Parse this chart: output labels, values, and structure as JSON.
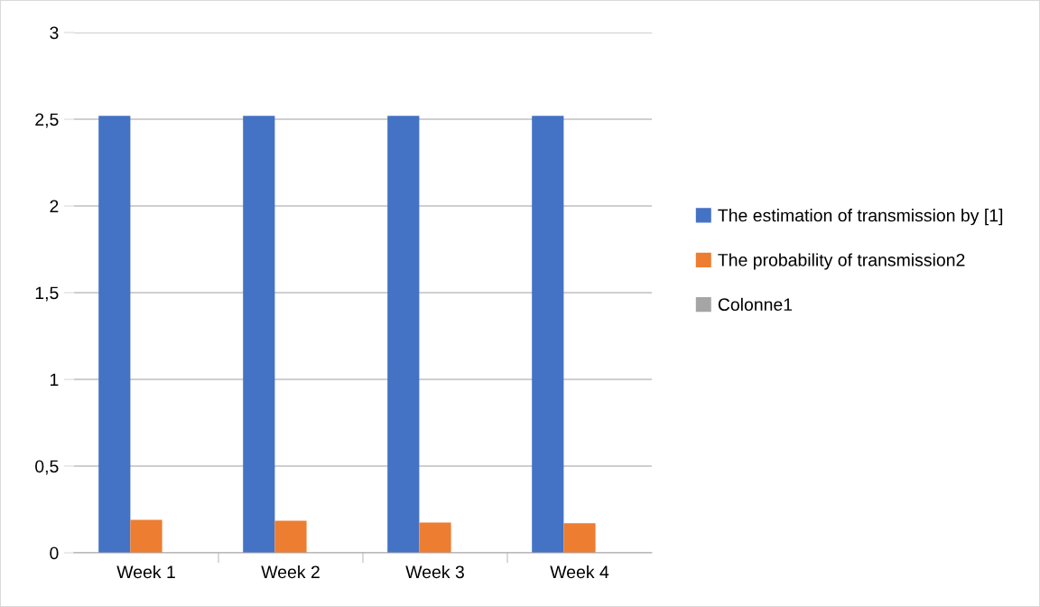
{
  "chart_data": {
    "type": "bar",
    "categories": [
      "Week 1",
      "Week 2",
      "Week 3",
      "Week 4"
    ],
    "series": [
      {
        "name": "The estimation of transmission by [1]",
        "color": "#4472c4",
        "values": [
          2.52,
          2.52,
          2.52,
          2.52
        ]
      },
      {
        "name": "The probability of transmission2",
        "color": "#ed7d31",
        "values": [
          0.19,
          0.185,
          0.175,
          0.17
        ]
      },
      {
        "name": "Colonne1",
        "color": "#a5a5a5",
        "values": [
          null,
          null,
          null,
          null
        ]
      }
    ],
    "ylim": [
      0,
      3
    ],
    "yticks": [
      0,
      {
        "value": 0.5,
        "label": "0,5"
      },
      1,
      {
        "value": 1.5,
        "label": "1,5"
      },
      2,
      {
        "value": 2.5,
        "label": "2,5"
      },
      3
    ],
    "grid": "y",
    "legend": "right"
  }
}
